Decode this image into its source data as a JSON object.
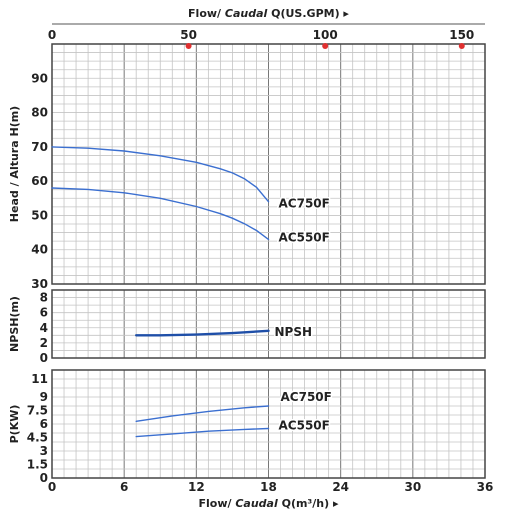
{
  "chart_data": [
    {
      "name": "head",
      "type": "line",
      "ylabel": "Head / Altura H(m)",
      "ylim": [
        30,
        100
      ],
      "yticks": [
        30,
        40,
        50,
        60,
        70,
        80,
        90
      ],
      "xlim": [
        0,
        36
      ],
      "grid": true,
      "series": [
        {
          "name": "AC750F",
          "color": "#3b6fd0",
          "x": [
            0,
            3,
            6,
            9,
            12,
            14,
            15,
            16,
            17,
            18
          ],
          "y": [
            70,
            69.6,
            68.8,
            67.4,
            65.5,
            63.6,
            62.4,
            60.7,
            58.2,
            54
          ]
        },
        {
          "name": "AC550F",
          "color": "#3b6fd0",
          "x": [
            0,
            3,
            6,
            9,
            12,
            14,
            15,
            16,
            17,
            18
          ],
          "y": [
            58,
            57.6,
            56.6,
            55,
            52.6,
            50.5,
            49.2,
            47.6,
            45.6,
            43
          ]
        }
      ]
    },
    {
      "name": "npsh",
      "type": "line",
      "ylabel": "NPSH(m)",
      "ylim": [
        0,
        9
      ],
      "yticks": [
        0,
        2,
        4,
        6,
        8
      ],
      "xlim": [
        0,
        36
      ],
      "grid": true,
      "series": [
        {
          "name": "NPSH",
          "color": "#1f4fa8",
          "x": [
            7,
            9,
            12,
            15,
            18
          ],
          "y": [
            3.0,
            3.0,
            3.1,
            3.3,
            3.6
          ]
        }
      ]
    },
    {
      "name": "power",
      "type": "line",
      "ylabel": "P(KW)",
      "ylim": [
        0,
        12
      ],
      "yticks": [
        0,
        1.5,
        3,
        4.5,
        6,
        7.5,
        9,
        11
      ],
      "xlim": [
        0,
        36
      ],
      "xticks": [
        0,
        6,
        12,
        18,
        24,
        30,
        36
      ],
      "xlabel_prefix": "Flow/ ",
      "xlabel_italic": "Caudal",
      "xlabel_suffix": " Q(m³/h)  ▸",
      "grid": true,
      "series": [
        {
          "name": "AC750F",
          "color": "#3b6fd0",
          "x": [
            7,
            10,
            13,
            16,
            18
          ],
          "y": [
            6.3,
            6.9,
            7.4,
            7.8,
            8.0
          ]
        },
        {
          "name": "AC550F",
          "color": "#3b6fd0",
          "x": [
            7,
            10,
            13,
            16,
            18
          ],
          "y": [
            4.6,
            4.9,
            5.2,
            5.4,
            5.5
          ]
        }
      ]
    }
  ],
  "top_axis": {
    "title_prefix": "Flow/ ",
    "title_italic": "Caudal",
    "title_suffix": " Q(US.GPM) ▸",
    "ticks": [
      0,
      50,
      100,
      150
    ],
    "marker_color": "#e03030"
  }
}
